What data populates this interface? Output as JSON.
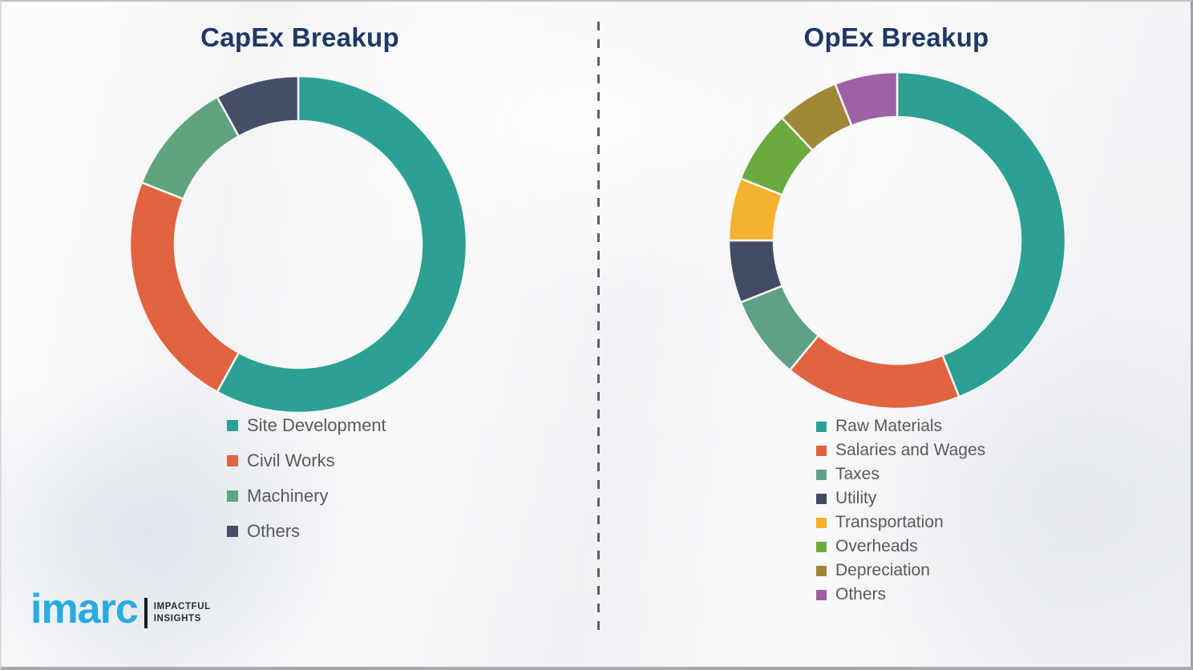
{
  "brand": {
    "wordmark": "imarc",
    "tagline_line1": "IMPACTFUL",
    "tagline_line2": "INSIGHTS",
    "wordmark_color": "#29abe2"
  },
  "divider_style": "vertical-dashed",
  "title_color": "#1f3864",
  "legend_text_color": "#595959",
  "chart_data": [
    {
      "type": "pie",
      "subtype": "donut",
      "title": "CapEx Breakup",
      "categories": [
        "Site Development",
        "Civil Works",
        "Machinery",
        "Others"
      ],
      "values": [
        58,
        23,
        11,
        8
      ],
      "values_are_estimated_percent": true,
      "colors": [
        "#2ba093",
        "#e2633f",
        "#5fa37f",
        "#474e68"
      ],
      "start_angle_deg": 0,
      "direction": "clockwise",
      "legend_position": "below-left",
      "data_labels": "none"
    },
    {
      "type": "pie",
      "subtype": "donut",
      "title": "OpEx Breakup",
      "categories": [
        "Raw Materials",
        "Salaries and Wages",
        "Taxes",
        "Utility",
        "Transportation",
        "Overheads",
        "Depreciation",
        "Others"
      ],
      "values": [
        44,
        17,
        8,
        6,
        6,
        7,
        6,
        6
      ],
      "values_are_estimated_percent": true,
      "colors": [
        "#2ba093",
        "#e2633f",
        "#5ea184",
        "#424a64",
        "#f3b32e",
        "#6aaa3f",
        "#a08838",
        "#9c62a4"
      ],
      "start_angle_deg": 0,
      "direction": "clockwise",
      "legend_position": "below-left",
      "data_labels": "none"
    }
  ]
}
